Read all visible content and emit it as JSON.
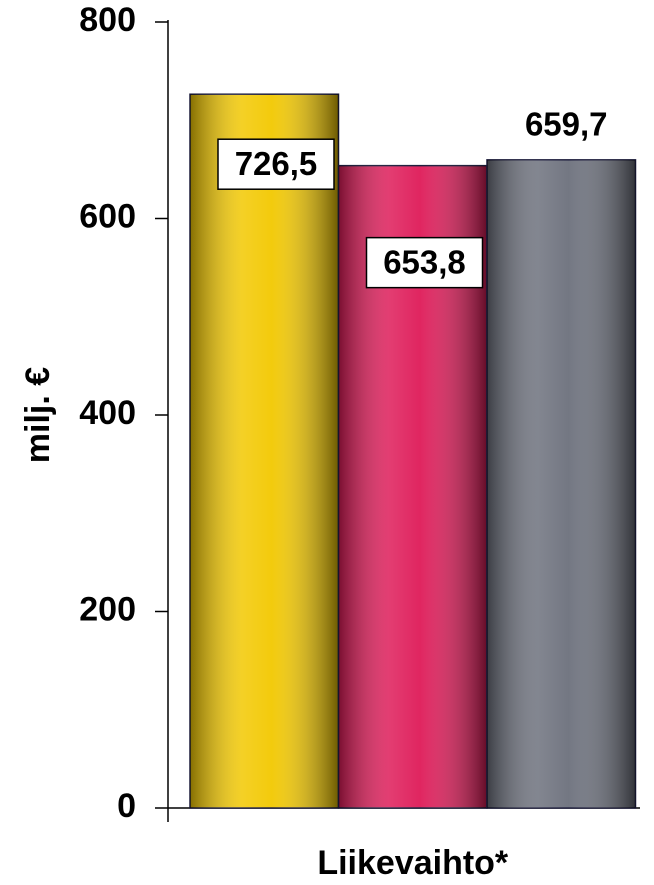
{
  "chart_data": {
    "type": "bar",
    "categories": [
      "Liikevaihto*"
    ],
    "y_label": "milj. €",
    "series": [
      {
        "color": "#f2c800",
        "values": [
          726.5
        ],
        "value_labels": [
          "726,5"
        ]
      },
      {
        "color": "#de1a58",
        "values": [
          653.8
        ],
        "value_labels": [
          "653,8"
        ]
      },
      {
        "color": "#6c707c",
        "values": [
          659.7
        ],
        "value_labels": [
          "659,7"
        ]
      }
    ],
    "ylim": [
      0,
      800
    ],
    "yticks": [
      0,
      200,
      400,
      600,
      800
    ]
  }
}
